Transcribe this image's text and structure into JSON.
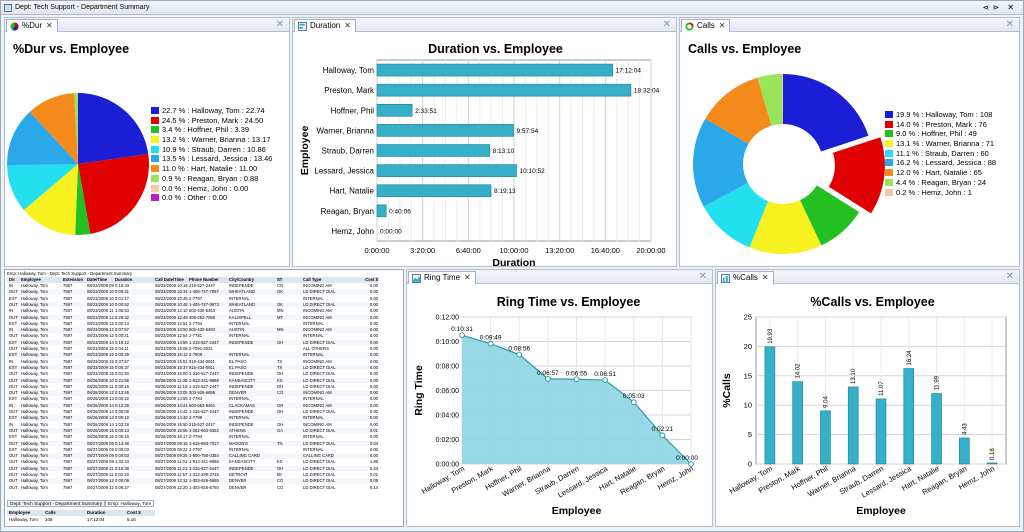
{
  "window": {
    "title": "Dept: Tech Support - Department Summary"
  },
  "colors": {
    "blue": "#1a1fd6",
    "red": "#e00000",
    "green": "#22c021",
    "yellow": "#f7f21f",
    "cyan": "#22e0f0",
    "sky": "#2aa8ea",
    "orange": "#f58a1c",
    "lightgreen": "#9be45a",
    "peach": "#f3c9a0",
    "magenta": "#c118c8",
    "bar": "#35b0c8",
    "area": "#8ed4e2"
  },
  "pct_dur": {
    "tab": "%Dur",
    "title": "%Dur vs. Employee",
    "legend": [
      "22.7 % : Halloway, Tom : 22.74",
      "24.5 % : Preston, Mark : 24.50",
      "3.4 % : Hoffner, Phil : 3.39",
      "13.2 % : Warner, Brianna : 13.17",
      "10.9 % : Straub, Darren : 10.86",
      "13.5 % : Lessard, Jessica : 13.46",
      "11.0 % : Hart, Natalie : 11.00",
      "0.9 % : Reagan, Bryan : 0.88",
      "0.0 % : Hemz, John : 0.00",
      "0.0 % : Other : 0.00"
    ]
  },
  "duration": {
    "tab": "Duration",
    "title": "Duration vs. Employee",
    "xlabel": "Duration",
    "ylabel": "Employee",
    "ticks": [
      "0:00:00",
      "3:20:00",
      "6:40:00",
      "10:00:00",
      "13:20:00",
      "16:40:00",
      "20:00:00"
    ]
  },
  "calls": {
    "tab": "Calls",
    "title": "Calls vs. Employee",
    "legend": [
      "19.9 % : Halloway, Tom : 108",
      "14.0 % : Preston, Mark : 76",
      "9.0 % : Hoffner, Phil : 49",
      "13.1 % : Warner, Brianna : 71",
      "11.1 % : Straub, Darren : 60",
      "16.2 % : Lessard, Jessica : 88",
      "12.0 % : Hart, Natalie : 65",
      "4.4 % : Reagan, Bryan : 24",
      "0.2 % : Hemz, John : 1"
    ]
  },
  "ring": {
    "tab": "Ring Time",
    "title": "Ring Time vs. Employee",
    "xlabel": "Employee",
    "ylabel": "Ring Time",
    "yticks": [
      "0:00:00",
      "0:02:00",
      "0:04:00",
      "0:06:00",
      "0:08:00",
      "0:10:00",
      "0:12:00"
    ]
  },
  "pcalls": {
    "tab": "%Calls",
    "title": "%Calls vs. Employee",
    "xlabel": "Employee",
    "ylabel": "%Calls",
    "yticks": [
      "0",
      "5",
      "10",
      "15",
      "20",
      "25"
    ]
  },
  "grid": {
    "caption": "Emp: Halloway, Tom - Dept: Tech Support - Department Summary",
    "headers": [
      "Dir",
      "Employee",
      "Extension",
      "Date/Time",
      "Duration",
      "Call Date/Time",
      "Phone Number",
      "City/Country",
      "ST",
      "Call Type",
      "Cost $"
    ],
    "rows": [
      [
        "IN",
        "Halloway, Tom",
        "7597",
        "08/23/2009 09:33:24",
        "0:15:33",
        "08/23/2009 10:15:04",
        "215-527-2447",
        "INDEPENDE",
        "CO",
        "INCOMING AM",
        "0.00"
      ],
      [
        "OUT",
        "Halloway, Tom",
        "7597",
        "08/23/2009 10:39:32",
        "0:00:41",
        "08/23/2009 10:34:52",
        "1-405-747-7097",
        "WHEATLAND",
        "OK",
        "LD DIRECT DIAL",
        "0.00"
      ],
      [
        "EXT",
        "Halloway, Tom",
        "7597",
        "08/23/2009 10:44:03",
        "0:01:17",
        "08/23/2009 10:45:28",
        "2-7797",
        "INTERNAL",
        "",
        "INTERNAL",
        "0.00"
      ],
      [
        "OUT",
        "Halloway, Tom",
        "7597",
        "08/23/2009 10:45:45",
        "0:00:52",
        "08/23/2009 10:46:09",
        "1-405-747-9973",
        "WHEATLAND",
        "OK",
        "LD DIRECT DIAL",
        "0.00"
      ],
      [
        "IN",
        "Halloway, Tom",
        "7597",
        "08/23/2009 11:00:19",
        "1:06:53",
        "08/23/2009 12:10:11",
        "502-430-5463",
        "AUSTIN",
        "MN",
        "INCOMING AM",
        "0.00"
      ],
      [
        "OUT",
        "Halloway, Tom",
        "7597",
        "08/23/2009 12:22:38",
        "0:26:32",
        "08/23/2009 12:49:07",
        "406-252-7096",
        "KALISPELL",
        "MT",
        "INCOMING AM",
        "0.00"
      ],
      [
        "EXT",
        "Halloway, Tom",
        "7597",
        "08/23/2009 12:51:25",
        "0:00:13",
        "08/23/2009 12:51:52",
        "2-7794",
        "INTERNAL",
        "",
        "INTERNAL",
        "0.00"
      ],
      [
        "IN",
        "Halloway, Tom",
        "7597",
        "08/23/2009 12:57:22",
        "0:07:57",
        "08/23/2009 13:50:29",
        "502-430-5463",
        "AUSTIN",
        "MN",
        "INCOMING AM",
        "0.00"
      ],
      [
        "OUT",
        "Halloway, Tom",
        "7597",
        "08/23/2009 12:53:33",
        "0:00:21",
        "08/23/2009 12:54:00",
        "2-7781",
        "INTERNAL",
        "",
        "INTERNAL",
        "0.00"
      ],
      [
        "EXT",
        "Halloway, Tom",
        "7597",
        "08/23/2009 14:56:44",
        "0:18:12",
        "08/23/2009 14:59:02",
        "1-215-527-2447",
        "INDEPENDE",
        "OH",
        "LD DIRECT DIAL",
        "0.00"
      ],
      [
        "OUT",
        "Halloway, Tom",
        "7597",
        "08/23/2009 15:00:23",
        "0:04:11",
        "08/23/2009 15:05:06",
        "2-7091-2021",
        "",
        "",
        "ALL OTHERS",
        "0.00"
      ],
      [
        "EXT",
        "Halloway, Tom",
        "7597",
        "08/23/2009 15:12:41",
        "0:00:29",
        "08/23/2009 15:12:18",
        "2-7908",
        "INTERNAL",
        "",
        "INTERNAL",
        "0.00"
      ],
      [
        "IN",
        "Halloway, Tom",
        "7597",
        "08/23/2009 15:16:40",
        "0:37:57",
        "08/23/2009 15:51:31",
        "915-434-0911",
        "EL PASO",
        "TX",
        "INCOMING AM",
        "0.00"
      ],
      [
        "EXT",
        "Halloway, Tom",
        "7597",
        "08/23/2009 15:41:56",
        "0:00:37",
        "08/23/2009 15:37:46",
        "915-434-0911",
        "EL PASO",
        "TX",
        "LD DIRECT DIAL",
        "0.00"
      ],
      [
        "OUT",
        "Halloway, Tom",
        "7597",
        "08/23/2009 15:50:37",
        "0:01:50",
        "08/23/2009 16:00:32",
        "1-216-527-2447",
        "INDEPENDE",
        "OH",
        "LD DIRECT DIAL",
        "0.00"
      ],
      [
        "OUT",
        "Halloway, Tom",
        "7597",
        "08/26/2009 10:33:29",
        "0:21:56",
        "08/26/2009 11:30:34",
        "1-913-341-9966",
        "KANSASCITY",
        "KS",
        "LD DIRECT DIAL",
        "0.00"
      ],
      [
        "OUT",
        "Halloway, Tom",
        "7597",
        "08/26/2009 11:15:18",
        "0:00:16",
        "08/26/2009 11:15:38",
        "1-215-527-2447",
        "INDEPENDE",
        "OH",
        "LD DIRECT DIAL",
        "0.00"
      ],
      [
        "OUT",
        "Halloway, Tom",
        "7597",
        "08/26/2009 12:41:43",
        "0:13:46",
        "08/26/2009 13:05:30",
        "303-926-6695",
        "DENVER",
        "CO",
        "INCOMING AM",
        "0.00"
      ],
      [
        "EXT",
        "Halloway, Tom",
        "7597",
        "08/26/2009 13:56:40",
        "0:00:22",
        "08/26/2009 14:55:52",
        "2-7784",
        "INTERNAL",
        "",
        "INTERNAL",
        "0.00"
      ],
      [
        "IN",
        "Halloway, Tom",
        "7597",
        "08/26/2009 14:29:50",
        "0:12:26",
        "08/26/2009 14:41:41",
        "503-653-9461",
        "CLACKAMAS",
        "OR",
        "INCOMING AM",
        "0.00"
      ],
      [
        "OUT",
        "Halloway, Tom",
        "7597",
        "08/26/2009 14:33:47",
        "0:00:08",
        "08/26/2009 14:43:41",
        "1-215-527-2447",
        "INDEPENDE",
        "OH",
        "LD DIRECT DIAL",
        "0.00"
      ],
      [
        "EXT",
        "Halloway, Tom",
        "7597",
        "08/26/2009 14:37:02",
        "0:00:12",
        "08/26/2009 14:40:34",
        "2-7799",
        "INTERNAL",
        "",
        "INTERNAL",
        "0.00"
      ],
      [
        "IN",
        "Halloway, Tom",
        "7597",
        "08/26/2009 14:47:00",
        "1:03:18",
        "08/26/2009 15:50:01",
        "215-527-2447",
        "INDEPENDE",
        "OH",
        "INCOMING AM",
        "0.00"
      ],
      [
        "OUT",
        "Halloway, Tom",
        "7597",
        "08/26/2009 15:54:08",
        "0:00:13",
        "08/26/2009 15:55:30",
        "1-262-663-9352",
        "ATHENS",
        "GA",
        "LD DIRECT DIAL",
        "0.01"
      ],
      [
        "EXT",
        "Halloway, Tom",
        "7597",
        "08/26/2009 16:17:32",
        "0:00:16",
        "08/26/2009 16:17:53",
        "2-7794",
        "INTERNAL",
        "",
        "INTERNAL",
        "0.00"
      ],
      [
        "OUT",
        "Halloway, Tom",
        "7597",
        "08/27/2009 08:59:17",
        "0:14:48",
        "08/27/2009 09:15:11",
        "1-615-893-7917",
        "MASON'S",
        "TN",
        "LD DIRECT DIAL",
        "0.04"
      ],
      [
        "EXT",
        "Halloway, Tom",
        "7597",
        "08/27/2009 09:22:43",
        "0:00:03",
        "08/27/2009 09:22:48",
        "2-7797",
        "INTERNAL",
        "",
        "INTERNAL",
        "0.00"
      ],
      [
        "OUT",
        "Halloway, Tom",
        "7597",
        "08/27/2009 09:24:01",
        "0:00:53",
        "08/27/2009 09:25:11",
        "1-800-758-0384",
        "CALLING CARD",
        "",
        "CALLING CARD",
        "0.00"
      ],
      [
        "OUT",
        "Halloway, Tom",
        "7597",
        "08/27/2009 09:28:59",
        "1:32:43",
        "08/27/2009 11:01:49",
        "1-913-341-9966",
        "KANSASCITY",
        "KS",
        "LD DIRECT DIAL",
        "1.86"
      ],
      [
        "OUT",
        "Halloway, Tom",
        "7597",
        "08/27/2009 11:05:08",
        "0:16:38",
        "08/27/2009 11:21:12",
        "1-215-527-2447",
        "INDEPENDE",
        "OH",
        "LD DIRECT DIAL",
        "0.44"
      ],
      [
        "OUT",
        "Halloway, Tom",
        "7597",
        "08/27/2009 11:54:20",
        "0:02:20",
        "08/27/2009 11:57:31",
        "1-313-299-3745",
        "DETROIT",
        "MI",
        "LD DIRECT DIAL",
        "0.02"
      ],
      [
        "OUT",
        "Halloway, Tom",
        "7597",
        "08/27/2009 12:11:09",
        "0:00:09",
        "08/27/2009 12:12:24",
        "1-303-926-6695",
        "DENVER",
        "CO",
        "LD DIRECT DIAL",
        "0.05"
      ],
      [
        "OUT",
        "Halloway, Tom",
        "7597",
        "08/27/2009 12:13:42",
        "0:06:27",
        "08/27/2009 12:20:15",
        "1-303-926-6750",
        "DENVER",
        "CO",
        "LD DIRECT DIAL",
        "0.14"
      ]
    ],
    "tabs": [
      "Dept: Tech Support - Department Summary",
      "Emp: Halloway, Tom"
    ],
    "footer_headers": [
      "Employee",
      "Calls",
      "Duration",
      "Cost $"
    ],
    "footer_row": [
      "Halloway, Tom",
      "108",
      "17:12:04",
      "5.16"
    ]
  },
  "chart_data": [
    {
      "type": "pie",
      "title": "%Dur vs. Employee",
      "labels": [
        "Halloway, Tom",
        "Preston, Mark",
        "Hoffner, Phil",
        "Warner, Brianna",
        "Straub, Darren",
        "Lessard, Jessica",
        "Hart, Natalie",
        "Reagan, Bryan",
        "Hemz, John",
        "Other"
      ],
      "values": [
        22.74,
        24.5,
        3.39,
        13.17,
        10.86,
        13.46,
        11.0,
        0.88,
        0.0,
        0.0
      ],
      "legend": "right"
    },
    {
      "type": "bar",
      "orientation": "horizontal",
      "title": "Duration vs. Employee",
      "xlabel": "Duration",
      "ylabel": "Employee",
      "categories": [
        "Halloway, Tom",
        "Preston, Mark",
        "Hoffner, Phil",
        "Warner, Brianna",
        "Straub, Darren",
        "Lessard, Jessica",
        "Hart, Natalie",
        "Reagan, Bryan",
        "Hemz, John"
      ],
      "values": [
        "17:12:04",
        "18:32:04",
        "2:33:51",
        "9:57:54",
        "8:13:10",
        "10:10:52",
        "8:19:13",
        "0:40:06",
        "0:00:00"
      ],
      "xlim": [
        "0:00:00",
        "20:00:00"
      ],
      "grid": true
    },
    {
      "type": "pie",
      "variant": "donut",
      "title": "Calls vs. Employee",
      "labels": [
        "Halloway, Tom",
        "Preston, Mark",
        "Hoffner, Phil",
        "Warner, Brianna",
        "Straub, Darren",
        "Lessard, Jessica",
        "Hart, Natalie",
        "Reagan, Bryan",
        "Hemz, John"
      ],
      "values": [
        108,
        76,
        49,
        71,
        60,
        88,
        65,
        24,
        1
      ],
      "exploded": "Preston, Mark",
      "legend": "right"
    },
    {
      "type": "area",
      "title": "Ring Time vs. Employee",
      "xlabel": "Employee",
      "ylabel": "Ring Time",
      "categories": [
        "Halloway, Tom",
        "Preston, Mark",
        "Hoffner, Phil",
        "Warner, Brianna",
        "Straub, Darren",
        "Lessard, Jessica",
        "Hart, Natalie",
        "Reagan, Bryan",
        "Hemz, John"
      ],
      "values": [
        "0:10:31",
        "0:09:49",
        "0:08:56",
        "0:06:57",
        "0:06:55",
        "0:06:51",
        "0:05:03",
        "0:02:21",
        "0:00:00"
      ],
      "ylim": [
        "0:00:00",
        "0:12:00"
      ],
      "grid": true
    },
    {
      "type": "bar",
      "title": "%Calls vs. Employee",
      "xlabel": "Employee",
      "ylabel": "%Calls",
      "categories": [
        "Halloway, Tom",
        "Preston, Mark",
        "Hoffner, Phil",
        "Warner, Brianna",
        "Straub, Darren",
        "Lessard, Jessica",
        "Hart, Natalie",
        "Reagan, Bryan",
        "Hemz, John"
      ],
      "values": [
        19.93,
        14.02,
        9.04,
        13.1,
        11.07,
        16.24,
        11.99,
        4.43,
        0.18
      ],
      "ylim": [
        0,
        25
      ],
      "grid": true
    }
  ]
}
